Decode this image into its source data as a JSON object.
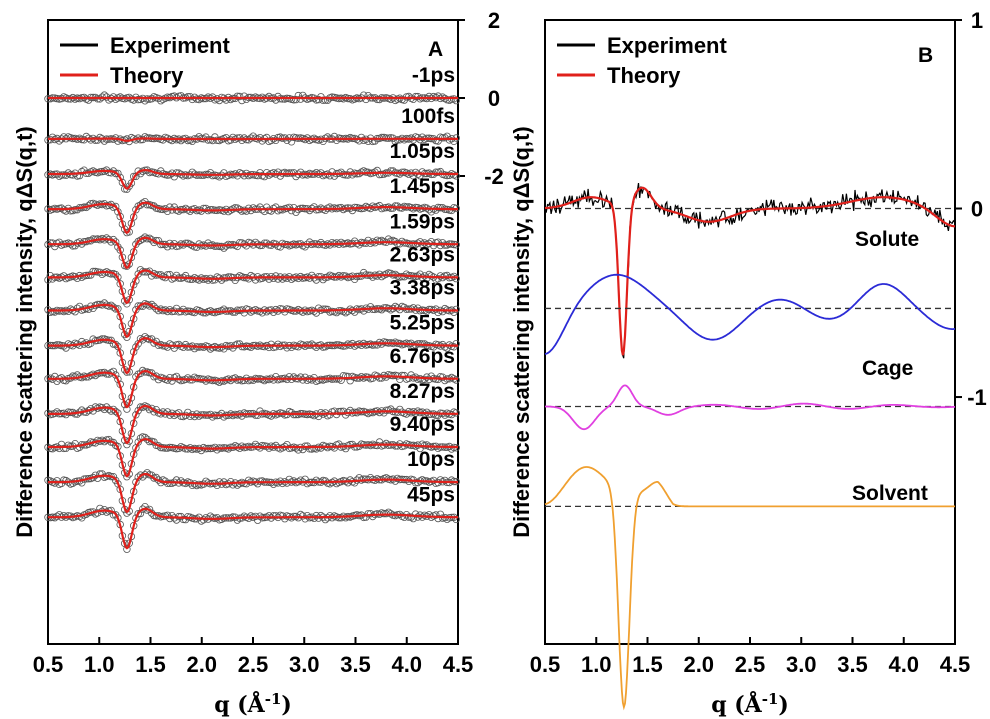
{
  "chart_data": [
    {
      "panel": "A",
      "type": "line",
      "ylabel": "Difference scattering intensity,  qΔS(q,t)",
      "xlabel": "q (Å⁻¹)",
      "xlim": [
        0.5,
        4.5
      ],
      "xticks": [
        "0.5",
        "1.0",
        "1.5",
        "2.0",
        "2.5",
        "3.0",
        "3.5",
        "4.0",
        "4.5"
      ],
      "ylim_right": [
        -14,
        2
      ],
      "yticks_right": [
        "2",
        "0",
        "-2"
      ],
      "legend": [
        "Experiment",
        "Theory"
      ],
      "legend_colors": [
        "#000000",
        "#e0201b"
      ],
      "legend_position": "top-left",
      "grid": false,
      "series": [
        {
          "name": "-1ps",
          "offset": 0,
          "dip": 0.0
        },
        {
          "name": "100fs",
          "offset": -1.05,
          "dip": 0.05
        },
        {
          "name": "1.05ps",
          "offset": -1.95,
          "dip": 0.4
        },
        {
          "name": "1.45ps",
          "offset": -2.85,
          "dip": 0.65
        },
        {
          "name": "1.59ps",
          "offset": -3.75,
          "dip": 0.65
        },
        {
          "name": "2.63ps",
          "offset": -4.6,
          "dip": 0.7
        },
        {
          "name": "3.38ps",
          "offset": -5.45,
          "dip": 0.72
        },
        {
          "name": "5.25ps",
          "offset": -6.35,
          "dip": 0.75
        },
        {
          "name": "6.76ps",
          "offset": -7.2,
          "dip": 0.78
        },
        {
          "name": "8.27ps",
          "offset": -8.1,
          "dip": 0.8
        },
        {
          "name": "9.40ps",
          "offset": -8.95,
          "dip": 0.8
        },
        {
          "name": "10ps",
          "offset": -9.85,
          "dip": 0.82
        },
        {
          "name": "45ps",
          "offset": -10.75,
          "dip": 0.85
        }
      ]
    },
    {
      "panel": "B",
      "type": "line",
      "ylabel": "Difference scattering intensity,  qΔS(q,t)",
      "xlabel": "q (Å⁻¹)",
      "xlim": [
        0.5,
        4.5
      ],
      "xticks": [
        "0.5",
        "1.0",
        "1.5",
        "2.0",
        "2.5",
        "3.0",
        "3.5",
        "4.0",
        "4.5"
      ],
      "ylim_right": [
        -2.31,
        1
      ],
      "yticks_right": [
        "1",
        "0",
        "-1"
      ],
      "legend": [
        "Experiment",
        "Theory"
      ],
      "legend_colors": [
        "#000000",
        "#e0201b"
      ],
      "legend_position": "top-left",
      "grid": false,
      "series": [
        {
          "name": "Experiment",
          "color": "#000000",
          "baseline": 0
        },
        {
          "name": "Theory",
          "color": "#e0201b",
          "baseline": 0
        },
        {
          "name": "Solute",
          "color": "#2b2bd6",
          "baseline": -0.53
        },
        {
          "name": "Cage",
          "color": "#e040e0",
          "baseline": -1.05
        },
        {
          "name": "Solvent",
          "color": "#f0a030",
          "baseline": -1.58
        }
      ]
    }
  ],
  "labels": {
    "panel_a": "A",
    "panel_b": "B",
    "legend_exp": "Experiment",
    "legend_theory": "Theory",
    "solute": "Solute",
    "cage": "Cage",
    "solvent": "Solvent",
    "ylabel": "Difference scattering intensity,  qΔS(q,t)"
  }
}
